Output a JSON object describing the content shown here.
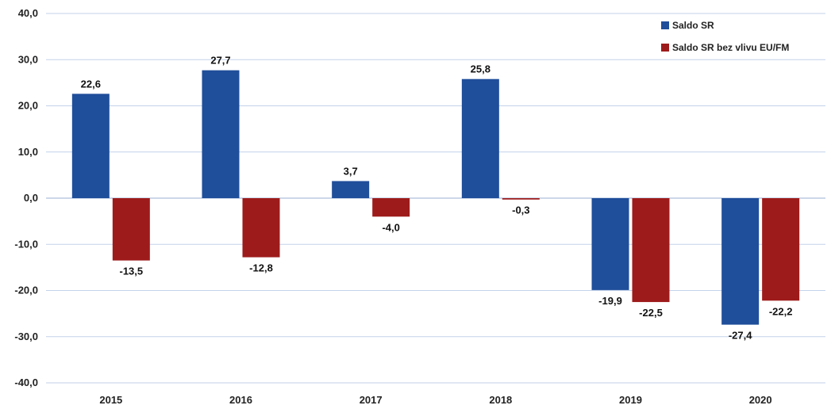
{
  "chart_data": {
    "type": "bar",
    "categories": [
      "2015",
      "2016",
      "2017",
      "2018",
      "2019",
      "2020"
    ],
    "series": [
      {
        "name": "Saldo SR",
        "values": [
          22.6,
          27.7,
          3.7,
          25.8,
          -19.9,
          -27.4
        ],
        "labels": [
          "22,6",
          "27,7",
          "3,7",
          "25,8",
          "-19,9",
          "-27,4"
        ],
        "color": "#1f4e9a"
      },
      {
        "name": "Saldo SR bez vlivu EU/FM",
        "values": [
          -13.5,
          -12.8,
          -4.0,
          -0.3,
          -22.5,
          -22.2
        ],
        "labels": [
          "-13,5",
          "-12,8",
          "-4,0",
          "-0,3",
          "-22,5",
          "-22,2"
        ],
        "color": "#9e1b1b"
      }
    ],
    "ylim": [
      -40,
      40
    ],
    "yticks": [
      "40,0",
      "30,0",
      "20,0",
      "10,0",
      "0,0",
      "-10,0",
      "-20,0",
      "-30,0",
      "-40,0"
    ],
    "ytick_values": [
      40,
      30,
      20,
      10,
      0,
      -10,
      -20,
      -30,
      -40
    ],
    "grid": true,
    "legend_position": "top-right",
    "title": "",
    "xlabel": "",
    "ylabel": ""
  }
}
